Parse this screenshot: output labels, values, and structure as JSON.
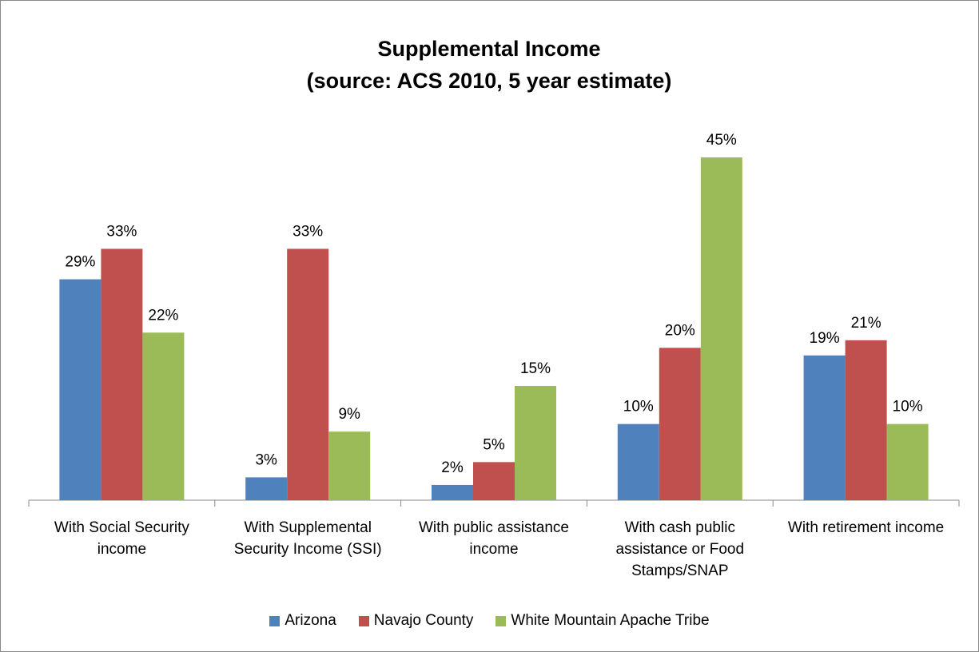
{
  "chart_data": {
    "type": "bar",
    "title": "Supplemental Income",
    "subtitle": "(source: ACS 2010, 5 year estimate)",
    "categories": [
      "With Social Security income",
      "With Supplemental Security Income (SSI)",
      "With public assistance income",
      "With cash public assistance or Food Stamps/SNAP",
      "With retirement income"
    ],
    "series": [
      {
        "name": "Arizona",
        "color": "#4f81bd",
        "values": [
          29,
          3,
          2,
          10,
          19
        ],
        "value_labels": [
          "29%",
          "3%",
          "2%",
          "10%",
          "19%"
        ]
      },
      {
        "name": "Navajo County",
        "color": "#c0504d",
        "values": [
          33,
          33,
          5,
          20,
          21
        ],
        "value_labels": [
          "33%",
          "33%",
          "5%",
          "20%",
          "21%"
        ]
      },
      {
        "name": "White Mountain Apache Tribe",
        "color": "#9bbb59",
        "values": [
          22,
          9,
          15,
          45,
          10
        ],
        "value_labels": [
          "22%",
          "9%",
          "15%",
          "45%",
          "10%"
        ]
      }
    ],
    "legend": "bottom"
  }
}
